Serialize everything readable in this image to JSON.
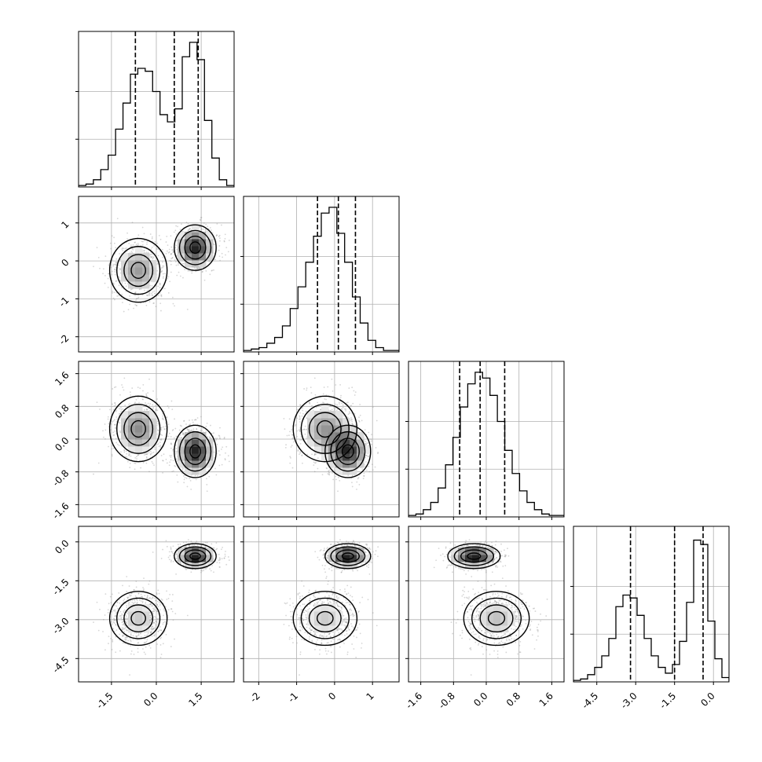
{
  "chart_data": {
    "type": "corner",
    "grid": true,
    "colors": {
      "line": "#000000",
      "grid": "#b0b0b0",
      "scatter": "#8a8a8a"
    },
    "parameters": [
      {
        "range": [
          -2.6,
          2.6
        ],
        "ticks": [
          "-1.5",
          "0.0",
          "1.5"
        ],
        "tick_values": [
          -1.5,
          0.0,
          1.5
        ],
        "hist_yticks": [
          0.33,
          0.66
        ],
        "quantiles": [
          -0.7,
          0.6,
          1.4
        ],
        "hist": [
          0.01,
          0.02,
          0.05,
          0.12,
          0.22,
          0.4,
          0.58,
          0.78,
          0.82,
          0.8,
          0.66,
          0.5,
          0.45,
          0.54,
          0.9,
          1.0,
          0.88,
          0.46,
          0.2,
          0.05,
          0.01
        ]
      },
      {
        "range": [
          -2.4,
          1.7
        ],
        "ticks": [
          "-2",
          "-1",
          "0",
          "1"
        ],
        "tick_values": [
          -2,
          -1,
          0,
          1
        ],
        "hist_yticks": [
          0.33,
          0.66
        ],
        "quantiles": [
          -0.45,
          0.1,
          0.55
        ],
        "hist": [
          0.01,
          0.02,
          0.03,
          0.06,
          0.1,
          0.18,
          0.3,
          0.45,
          0.62,
          0.8,
          0.96,
          1.0,
          0.82,
          0.62,
          0.38,
          0.2,
          0.08,
          0.03,
          0.01,
          0.01
        ]
      },
      {
        "range": [
          -1.9,
          1.9
        ],
        "ticks": [
          "-1.6",
          "-0.8",
          "0.0",
          "0.8",
          "1.6"
        ],
        "tick_values": [
          -1.6,
          -0.8,
          0.0,
          0.8,
          1.6
        ],
        "hist_yticks": [
          0.33,
          0.66
        ],
        "quantiles": [
          -0.65,
          -0.15,
          0.45
        ],
        "hist": [
          0.01,
          0.02,
          0.05,
          0.1,
          0.2,
          0.36,
          0.55,
          0.76,
          0.92,
          1.0,
          0.96,
          0.84,
          0.66,
          0.46,
          0.3,
          0.18,
          0.1,
          0.05,
          0.02,
          0.01,
          0.01
        ]
      },
      {
        "range": [
          -5.4,
          0.6
        ],
        "ticks": [
          "-4.5",
          "-3.0",
          "-1.5",
          "0.0"
        ],
        "tick_values": [
          -4.5,
          -3.0,
          -1.5,
          0.0
        ],
        "hist_yticks": [
          0.33,
          0.66
        ],
        "quantiles": [
          -3.2,
          -1.5,
          -0.4
        ],
        "hist": [
          0.01,
          0.02,
          0.05,
          0.1,
          0.18,
          0.3,
          0.52,
          0.6,
          0.58,
          0.46,
          0.3,
          0.18,
          0.1,
          0.06,
          0.12,
          0.28,
          0.55,
          0.98,
          0.95,
          0.42,
          0.16,
          0.03
        ]
      }
    ],
    "mixture": [
      {
        "w": 0.5,
        "mean": [
          -0.6,
          -0.25,
          0.25,
          -2.95
        ],
        "sd": [
          0.48,
          0.42,
          0.4,
          0.52
        ]
      },
      {
        "w": 0.5,
        "mean": [
          1.3,
          0.35,
          -0.3,
          -0.55
        ],
        "sd": [
          0.35,
          0.3,
          0.32,
          0.24
        ]
      }
    ]
  }
}
